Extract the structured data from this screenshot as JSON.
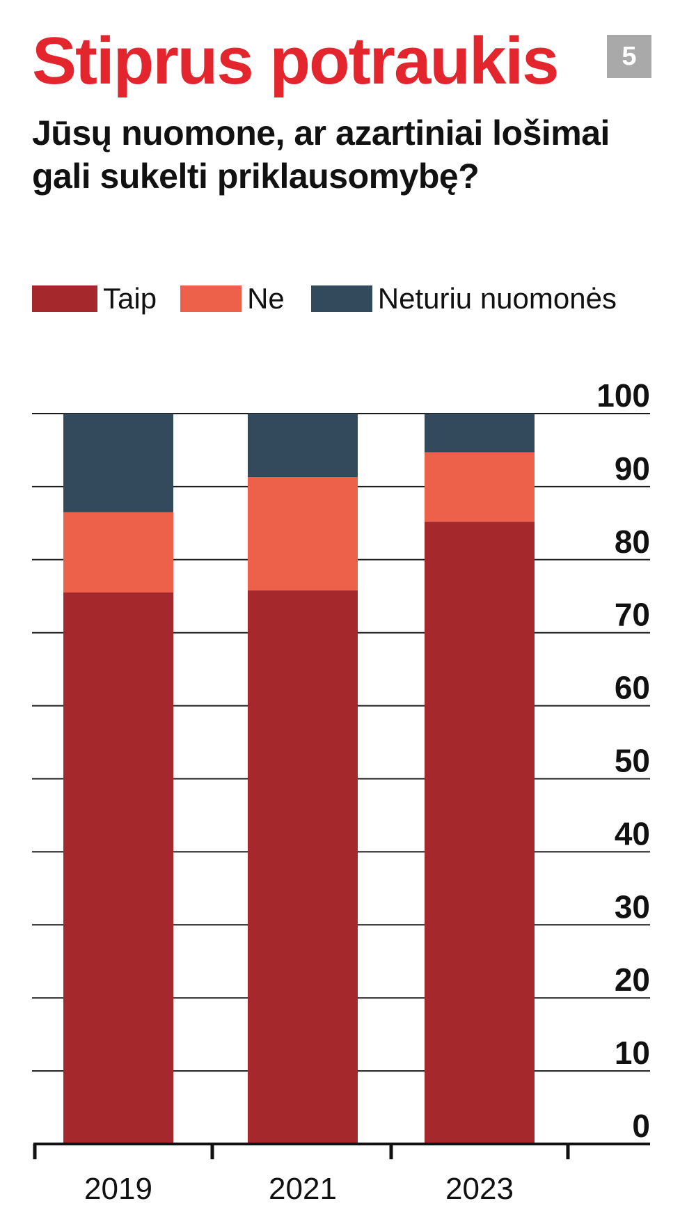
{
  "badge": "5",
  "colors": {
    "taip": "#a5282c",
    "ne": "#ed614a",
    "neturiu": "#334a5c",
    "title": "#e3262d",
    "badge_bg": "#a9a9a9"
  },
  "chart_data": {
    "type": "bar",
    "stacked": true,
    "title": "Stiprus potraukis",
    "subtitle": "Jūsų nuomone, ar azartiniai lošimai gali sukelti priklausomybę?",
    "categories": [
      "2019",
      "2021",
      "2023"
    ],
    "series": [
      {
        "name": "Taip",
        "color": "#a5282c",
        "values": [
          75.5,
          75.8,
          85.2
        ]
      },
      {
        "name": "Ne",
        "color": "#ed614a",
        "values": [
          11,
          15.5,
          9.5
        ]
      },
      {
        "name": "Neturiu nuomonės",
        "color": "#334a5c",
        "values": [
          13.5,
          8.7,
          5.3
        ]
      }
    ],
    "yticks": [
      "0",
      "10",
      "20",
      "30",
      "40",
      "50",
      "60",
      "70",
      "80",
      "90",
      "100"
    ],
    "ylim": [
      0,
      100
    ],
    "y_axis_side": "right",
    "grid": true,
    "legend_position": "top-left"
  }
}
